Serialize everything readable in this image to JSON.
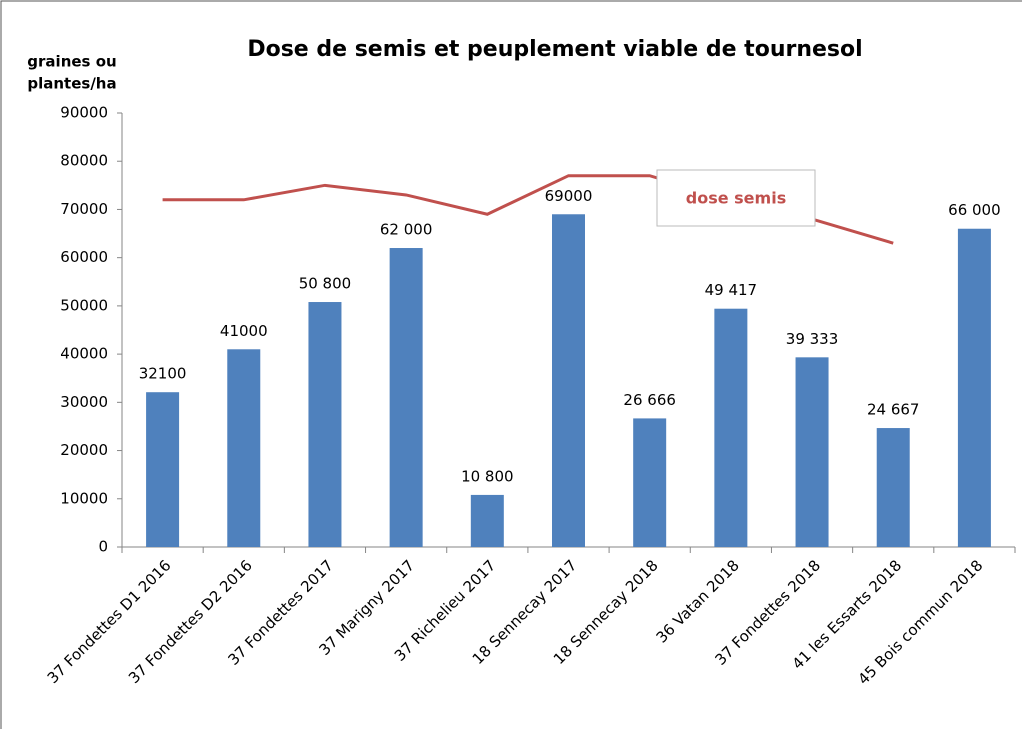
{
  "chart_data": {
    "type": "bar",
    "title": "Dose de semis et peuplement viable de tournesol",
    "ylabel_lines": [
      "graines ou",
      "plantes/ha"
    ],
    "categories": [
      "37 Fondettes D1 2016",
      "37 Fondettes D2 2016",
      "37 Fondettes 2017",
      "37 Marigny 2017",
      "37 Richelieu 2017",
      "18 Sennecay 2017",
      "18 Sennecay 2018",
      "36 Vatan 2018",
      "37 Fondettes 2018",
      "41 les Essarts 2018",
      "45 Bois commun 2018"
    ],
    "series": [
      {
        "type": "bar",
        "color": "#4f81bd",
        "values": [
          32100,
          41000,
          50800,
          62000,
          10800,
          69000,
          26666,
          49417,
          39333,
          24667,
          66000
        ],
        "value_labels": [
          "32100",
          "41000",
          "50 800",
          "62 000",
          "10 800",
          "69000",
          "26 666",
          "49 417",
          "39 333",
          "24 667",
          "66 000"
        ]
      },
      {
        "type": "line",
        "name": "dose semis",
        "color": "#c0504d",
        "values": [
          72000,
          72000,
          75000,
          73000,
          69000,
          77000,
          77000,
          72000,
          68000,
          63000,
          null
        ]
      }
    ],
    "ylim": [
      0,
      90000
    ],
    "yticks": [
      0,
      10000,
      20000,
      30000,
      40000,
      50000,
      60000,
      70000,
      80000,
      90000
    ],
    "grid": false
  }
}
